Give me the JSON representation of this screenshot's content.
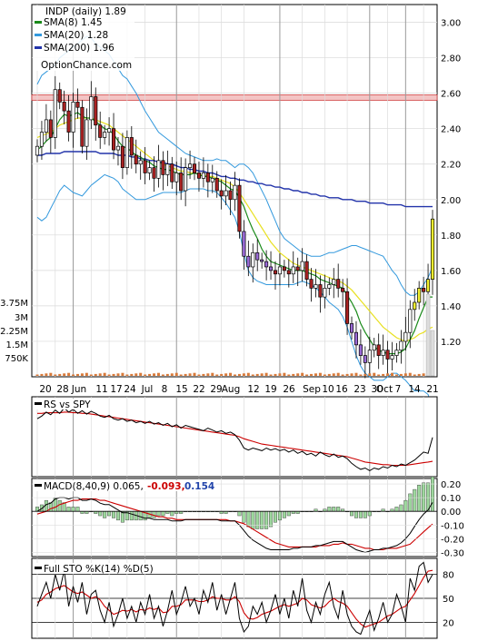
{
  "chart_data": {
    "type": "candlestick",
    "price_panel": {
      "ticker_label": "INDP (daily) 1.89",
      "legend": [
        {
          "label": "SMA(8) 1.45",
          "color": "#1a8a1a"
        },
        {
          "label": "SMA(20) 1.28",
          "color": "#3399dd"
        },
        {
          "label": "SMA(200) 1.96",
          "color": "#2233aa"
        }
      ],
      "watermark": "OptionChance.com",
      "y_ticks": [
        "3.00",
        "2.80",
        "2.60",
        "2.40",
        "2.20",
        "2.00",
        "1.80",
        "1.60",
        "1.40",
        "1.20"
      ],
      "ylim": [
        1.0,
        3.1
      ],
      "resistance_band": [
        2.56,
        2.59
      ],
      "closes": [
        2.3,
        2.38,
        2.45,
        2.35,
        2.62,
        2.55,
        2.5,
        2.38,
        2.55,
        2.52,
        2.3,
        2.45,
        2.58,
        2.42,
        2.35,
        2.38,
        2.4,
        2.28,
        2.3,
        2.18,
        2.35,
        2.25,
        2.2,
        2.22,
        2.15,
        2.18,
        2.12,
        2.22,
        2.14,
        2.2,
        2.1,
        2.15,
        2.05,
        2.18,
        2.2,
        2.15,
        2.12,
        2.15,
        2.1,
        2.12,
        2.05,
        2.02,
        2.05,
        2.0,
        2.08,
        1.82,
        1.68,
        1.62,
        1.7,
        1.66,
        1.65,
        1.62,
        1.6,
        1.58,
        1.62,
        1.6,
        1.58,
        1.62,
        1.6,
        1.65,
        1.55,
        1.5,
        1.52,
        1.45,
        1.5,
        1.52,
        1.55,
        1.5,
        1.48,
        1.3,
        1.25,
        1.18,
        1.12,
        1.08,
        1.15,
        1.18,
        1.12,
        1.15,
        1.1,
        1.12,
        1.15,
        1.2,
        1.25,
        1.38,
        1.42,
        1.5,
        1.48,
        1.55,
        1.89
      ],
      "sma8": [
        2.28,
        2.3,
        2.33,
        2.35,
        2.4,
        2.45,
        2.48,
        2.47,
        2.48,
        2.49,
        2.47,
        2.46,
        2.46,
        2.44,
        2.42,
        2.4,
        2.39,
        2.37,
        2.33,
        2.3,
        2.29,
        2.27,
        2.25,
        2.24,
        2.22,
        2.21,
        2.19,
        2.18,
        2.17,
        2.17,
        2.16,
        2.15,
        2.14,
        2.14,
        2.14,
        2.15,
        2.14,
        2.13,
        2.13,
        2.12,
        2.11,
        2.1,
        2.08,
        2.06,
        2.05,
        2.01,
        1.96,
        1.89,
        1.83,
        1.78,
        1.72,
        1.68,
        1.65,
        1.64,
        1.63,
        1.62,
        1.61,
        1.6,
        1.6,
        1.6,
        1.59,
        1.58,
        1.57,
        1.55,
        1.54,
        1.53,
        1.52,
        1.51,
        1.5,
        1.46,
        1.42,
        1.37,
        1.3,
        1.25,
        1.21,
        1.17,
        1.15,
        1.14,
        1.13,
        1.13,
        1.13,
        1.14,
        1.16,
        1.21,
        1.26,
        1.33,
        1.39,
        1.45,
        1.45
      ],
      "sma20": [
        2.35,
        2.36,
        2.37,
        2.38,
        2.4,
        2.42,
        2.43,
        2.44,
        2.45,
        2.46,
        2.46,
        2.46,
        2.46,
        2.45,
        2.44,
        2.43,
        2.42,
        2.4,
        2.38,
        2.36,
        2.34,
        2.32,
        2.3,
        2.28,
        2.26,
        2.24,
        2.22,
        2.21,
        2.2,
        2.19,
        2.18,
        2.17,
        2.16,
        2.16,
        2.15,
        2.15,
        2.14,
        2.14,
        2.13,
        2.13,
        2.12,
        2.11,
        2.1,
        2.09,
        2.07,
        2.04,
        2.0,
        1.96,
        1.92,
        1.88,
        1.84,
        1.8,
        1.76,
        1.73,
        1.7,
        1.68,
        1.66,
        1.64,
        1.63,
        1.62,
        1.61,
        1.6,
        1.59,
        1.58,
        1.57,
        1.56,
        1.55,
        1.54,
        1.53,
        1.51,
        1.49,
        1.46,
        1.43,
        1.4,
        1.37,
        1.34,
        1.31,
        1.28,
        1.26,
        1.24,
        1.22,
        1.21,
        1.2,
        1.21,
        1.22,
        1.24,
        1.25,
        1.27,
        1.28
      ],
      "sma200": [
        2.25,
        2.25,
        2.26,
        2.26,
        2.26,
        2.26,
        2.27,
        2.27,
        2.27,
        2.27,
        2.27,
        2.27,
        2.27,
        2.27,
        2.26,
        2.26,
        2.26,
        2.26,
        2.25,
        2.25,
        2.25,
        2.24,
        2.24,
        2.23,
        2.23,
        2.22,
        2.22,
        2.21,
        2.21,
        2.2,
        2.2,
        2.19,
        2.18,
        2.18,
        2.17,
        2.17,
        2.16,
        2.16,
        2.15,
        2.15,
        2.14,
        2.13,
        2.13,
        2.12,
        2.12,
        2.11,
        2.11,
        2.1,
        2.1,
        2.09,
        2.09,
        2.08,
        2.08,
        2.07,
        2.07,
        2.06,
        2.06,
        2.05,
        2.05,
        2.04,
        2.04,
        2.03,
        2.03,
        2.02,
        2.02,
        2.01,
        2.01,
        2.01,
        2.0,
        2.0,
        2.0,
        1.99,
        1.99,
        1.99,
        1.98,
        1.98,
        1.98,
        1.98,
        1.97,
        1.97,
        1.97,
        1.97,
        1.96,
        1.96,
        1.96,
        1.96,
        1.96,
        1.96,
        1.96
      ],
      "bb_upper": [
        2.65,
        2.7,
        2.72,
        2.74,
        2.76,
        2.8,
        2.82,
        2.84,
        2.86,
        2.88,
        2.9,
        2.92,
        2.91,
        2.88,
        2.86,
        2.84,
        2.82,
        2.78,
        2.74,
        2.7,
        2.68,
        2.64,
        2.6,
        2.55,
        2.5,
        2.46,
        2.42,
        2.38,
        2.36,
        2.34,
        2.32,
        2.3,
        2.28,
        2.26,
        2.25,
        2.24,
        2.23,
        2.22,
        2.22,
        2.22,
        2.23,
        2.22,
        2.22,
        2.2,
        2.18,
        2.2,
        2.2,
        2.18,
        2.15,
        2.1,
        2.05,
        2.0,
        1.94,
        1.88,
        1.82,
        1.78,
        1.76,
        1.74,
        1.72,
        1.7,
        1.69,
        1.68,
        1.68,
        1.68,
        1.69,
        1.7,
        1.7,
        1.71,
        1.72,
        1.73,
        1.74,
        1.74,
        1.73,
        1.72,
        1.71,
        1.7,
        1.69,
        1.68,
        1.64,
        1.6,
        1.57,
        1.52,
        1.48,
        1.46,
        1.46,
        1.48,
        1.52,
        1.56,
        1.62
      ],
      "bb_lower": [
        1.9,
        1.88,
        1.9,
        1.95,
        2.0,
        2.05,
        2.08,
        2.06,
        2.04,
        2.03,
        2.02,
        2.05,
        2.08,
        2.1,
        2.12,
        2.14,
        2.13,
        2.12,
        2.1,
        2.06,
        2.04,
        2.02,
        2.0,
        2.0,
        2.0,
        2.01,
        2.02,
        2.03,
        2.04,
        2.04,
        2.04,
        2.04,
        2.04,
        2.05,
        2.06,
        2.06,
        2.06,
        2.06,
        2.05,
        2.05,
        2.04,
        2.01,
        1.98,
        1.94,
        1.9,
        1.82,
        1.7,
        1.6,
        1.56,
        1.54,
        1.53,
        1.52,
        1.52,
        1.52,
        1.52,
        1.52,
        1.52,
        1.52,
        1.53,
        1.54,
        1.53,
        1.52,
        1.5,
        1.48,
        1.45,
        1.42,
        1.4,
        1.38,
        1.34,
        1.28,
        1.2,
        1.12,
        1.06,
        1.02,
        1.0,
        0.98,
        0.98,
        0.98,
        1.0,
        1.02,
        1.02,
        1.0,
        0.98,
        0.95,
        0.92,
        0.92,
        0.92,
        0.9,
        0.82
      ]
    },
    "volume_panel": {
      "y_ticks": [
        "3.75M",
        "3M",
        "2.25M",
        "1.5M",
        "750K"
      ],
      "spike_last_two": [
        0.9,
        0.5
      ]
    },
    "x_ticks": [
      "20",
      "28",
      "Jun",
      "11",
      "17",
      "24",
      "Jul",
      "8",
      "15",
      "22",
      "29",
      "Aug",
      "12",
      "19",
      "26",
      "Sep",
      "10",
      "16",
      "23",
      "30",
      "Oct",
      "7",
      "14",
      "21"
    ],
    "rs_panel": {
      "label": "RS vs SPY",
      "rs": [
        0.62,
        0.66,
        0.72,
        0.68,
        0.75,
        0.7,
        0.78,
        0.72,
        0.76,
        0.7,
        0.74,
        0.69,
        0.73,
        0.7,
        0.66,
        0.64,
        0.67,
        0.62,
        0.6,
        0.62,
        0.58,
        0.6,
        0.56,
        0.58,
        0.55,
        0.58,
        0.54,
        0.56,
        0.52,
        0.55,
        0.5,
        0.53,
        0.48,
        0.52,
        0.5,
        0.48,
        0.46,
        0.44,
        0.48,
        0.45,
        0.42,
        0.44,
        0.4,
        0.42,
        0.38,
        0.3,
        0.18,
        0.15,
        0.18,
        0.16,
        0.14,
        0.18,
        0.15,
        0.17,
        0.14,
        0.16,
        0.12,
        0.15,
        0.1,
        0.13,
        0.08,
        0.1,
        0.06,
        0.12,
        0.08,
        0.05,
        0.09,
        0.04,
        0.06,
        0.02,
        -0.05,
        -0.1,
        -0.14,
        -0.12,
        -0.16,
        -0.12,
        -0.14,
        -0.1,
        -0.12,
        -0.08,
        -0.1,
        -0.06,
        -0.08,
        -0.04,
        0.0,
        0.06,
        0.12,
        0.1,
        0.34
      ],
      "rs_ma": [
        0.7,
        0.7,
        0.71,
        0.71,
        0.71,
        0.71,
        0.72,
        0.72,
        0.71,
        0.71,
        0.7,
        0.7,
        0.69,
        0.68,
        0.67,
        0.66,
        0.65,
        0.64,
        0.63,
        0.62,
        0.61,
        0.6,
        0.59,
        0.58,
        0.57,
        0.56,
        0.55,
        0.54,
        0.53,
        0.52,
        0.51,
        0.5,
        0.49,
        0.48,
        0.47,
        0.46,
        0.45,
        0.44,
        0.43,
        0.42,
        0.41,
        0.4,
        0.39,
        0.38,
        0.37,
        0.35,
        0.32,
        0.3,
        0.28,
        0.26,
        0.24,
        0.23,
        0.22,
        0.21,
        0.2,
        0.19,
        0.18,
        0.17,
        0.16,
        0.15,
        0.14,
        0.13,
        0.12,
        0.11,
        0.1,
        0.09,
        0.08,
        0.07,
        0.06,
        0.05,
        0.03,
        0.01,
        -0.01,
        -0.03,
        -0.04,
        -0.05,
        -0.06,
        -0.07,
        -0.07,
        -0.08,
        -0.08,
        -0.08,
        -0.08,
        -0.07,
        -0.06,
        -0.05,
        -0.04,
        -0.03,
        -0.02
      ]
    },
    "macd_panel": {
      "label": "MACD(8,40,9)",
      "macd_value": "0.065,",
      "signal_value": "-0.093,",
      "signal_color": "#cc0000",
      "hist_value": "0.154",
      "hist_color": "#2244aa",
      "y_ticks": [
        "0.20",
        "0.10",
        "0.00",
        "-0.10",
        "-0.20",
        "-0.30"
      ],
      "ylim": [
        -0.33,
        0.24
      ],
      "macd": [
        0.0,
        0.02,
        0.05,
        0.06,
        0.09,
        0.1,
        0.1,
        0.09,
        0.1,
        0.1,
        0.08,
        0.08,
        0.09,
        0.08,
        0.06,
        0.05,
        0.05,
        0.03,
        0.01,
        -0.01,
        -0.01,
        -0.02,
        -0.03,
        -0.04,
        -0.05,
        -0.05,
        -0.06,
        -0.06,
        -0.06,
        -0.06,
        -0.07,
        -0.07,
        -0.07,
        -0.06,
        -0.06,
        -0.06,
        -0.06,
        -0.06,
        -0.06,
        -0.06,
        -0.06,
        -0.07,
        -0.07,
        -0.07,
        -0.07,
        -0.1,
        -0.14,
        -0.18,
        -0.21,
        -0.23,
        -0.25,
        -0.27,
        -0.28,
        -0.28,
        -0.28,
        -0.28,
        -0.28,
        -0.27,
        -0.27,
        -0.26,
        -0.26,
        -0.26,
        -0.25,
        -0.25,
        -0.24,
        -0.23,
        -0.22,
        -0.22,
        -0.22,
        -0.24,
        -0.26,
        -0.28,
        -0.29,
        -0.3,
        -0.29,
        -0.28,
        -0.28,
        -0.27,
        -0.27,
        -0.26,
        -0.25,
        -0.23,
        -0.2,
        -0.16,
        -0.11,
        -0.06,
        -0.02,
        0.01,
        0.065
      ],
      "signal": [
        -0.02,
        -0.01,
        0.0,
        0.02,
        0.03,
        0.05,
        0.06,
        0.07,
        0.08,
        0.08,
        0.09,
        0.09,
        0.09,
        0.09,
        0.08,
        0.08,
        0.07,
        0.06,
        0.05,
        0.04,
        0.03,
        0.02,
        0.01,
        0.0,
        -0.01,
        -0.02,
        -0.03,
        -0.04,
        -0.04,
        -0.05,
        -0.05,
        -0.06,
        -0.06,
        -0.06,
        -0.06,
        -0.06,
        -0.06,
        -0.06,
        -0.06,
        -0.06,
        -0.06,
        -0.06,
        -0.06,
        -0.07,
        -0.07,
        -0.08,
        -0.09,
        -0.11,
        -0.13,
        -0.15,
        -0.17,
        -0.19,
        -0.21,
        -0.23,
        -0.24,
        -0.25,
        -0.26,
        -0.26,
        -0.26,
        -0.26,
        -0.26,
        -0.26,
        -0.26,
        -0.25,
        -0.25,
        -0.25,
        -0.24,
        -0.24,
        -0.23,
        -0.24,
        -0.24,
        -0.25,
        -0.26,
        -0.27,
        -0.27,
        -0.28,
        -0.28,
        -0.28,
        -0.27,
        -0.27,
        -0.27,
        -0.26,
        -0.25,
        -0.24,
        -0.21,
        -0.18,
        -0.15,
        -0.12,
        -0.093
      ]
    },
    "sto_panel": {
      "label": "Full STO %K(14) %D(5)",
      "y_ticks": [
        "80",
        "50",
        "20"
      ],
      "ylim": [
        0,
        100
      ],
      "k": [
        40,
        55,
        70,
        50,
        80,
        60,
        85,
        40,
        65,
        45,
        70,
        30,
        55,
        60,
        35,
        20,
        45,
        15,
        30,
        50,
        25,
        40,
        20,
        45,
        30,
        55,
        25,
        40,
        15,
        35,
        60,
        30,
        45,
        65,
        40,
        50,
        30,
        60,
        45,
        70,
        35,
        55,
        30,
        50,
        70,
        25,
        8,
        15,
        40,
        30,
        45,
        20,
        35,
        55,
        30,
        50,
        25,
        60,
        40,
        75,
        35,
        20,
        45,
        30,
        55,
        70,
        40,
        25,
        60,
        30,
        15,
        8,
        5,
        20,
        35,
        10,
        25,
        45,
        20,
        30,
        55,
        40,
        20,
        75,
        60,
        90,
        95,
        70,
        80
      ],
      "d": [
        45,
        48,
        55,
        58,
        62,
        64,
        66,
        62,
        58,
        56,
        58,
        54,
        50,
        52,
        48,
        40,
        35,
        30,
        32,
        35,
        34,
        36,
        33,
        36,
        35,
        38,
        36,
        38,
        32,
        33,
        40,
        40,
        42,
        48,
        48,
        48,
        46,
        46,
        48,
        52,
        50,
        50,
        48,
        48,
        52,
        46,
        32,
        25,
        24,
        26,
        30,
        32,
        34,
        37,
        40,
        42,
        40,
        42,
        44,
        50,
        48,
        42,
        40,
        38,
        40,
        46,
        50,
        46,
        44,
        40,
        32,
        24,
        18,
        14,
        16,
        18,
        20,
        24,
        28,
        30,
        34,
        38,
        40,
        48,
        56,
        66,
        76,
        84,
        85
      ]
    }
  }
}
